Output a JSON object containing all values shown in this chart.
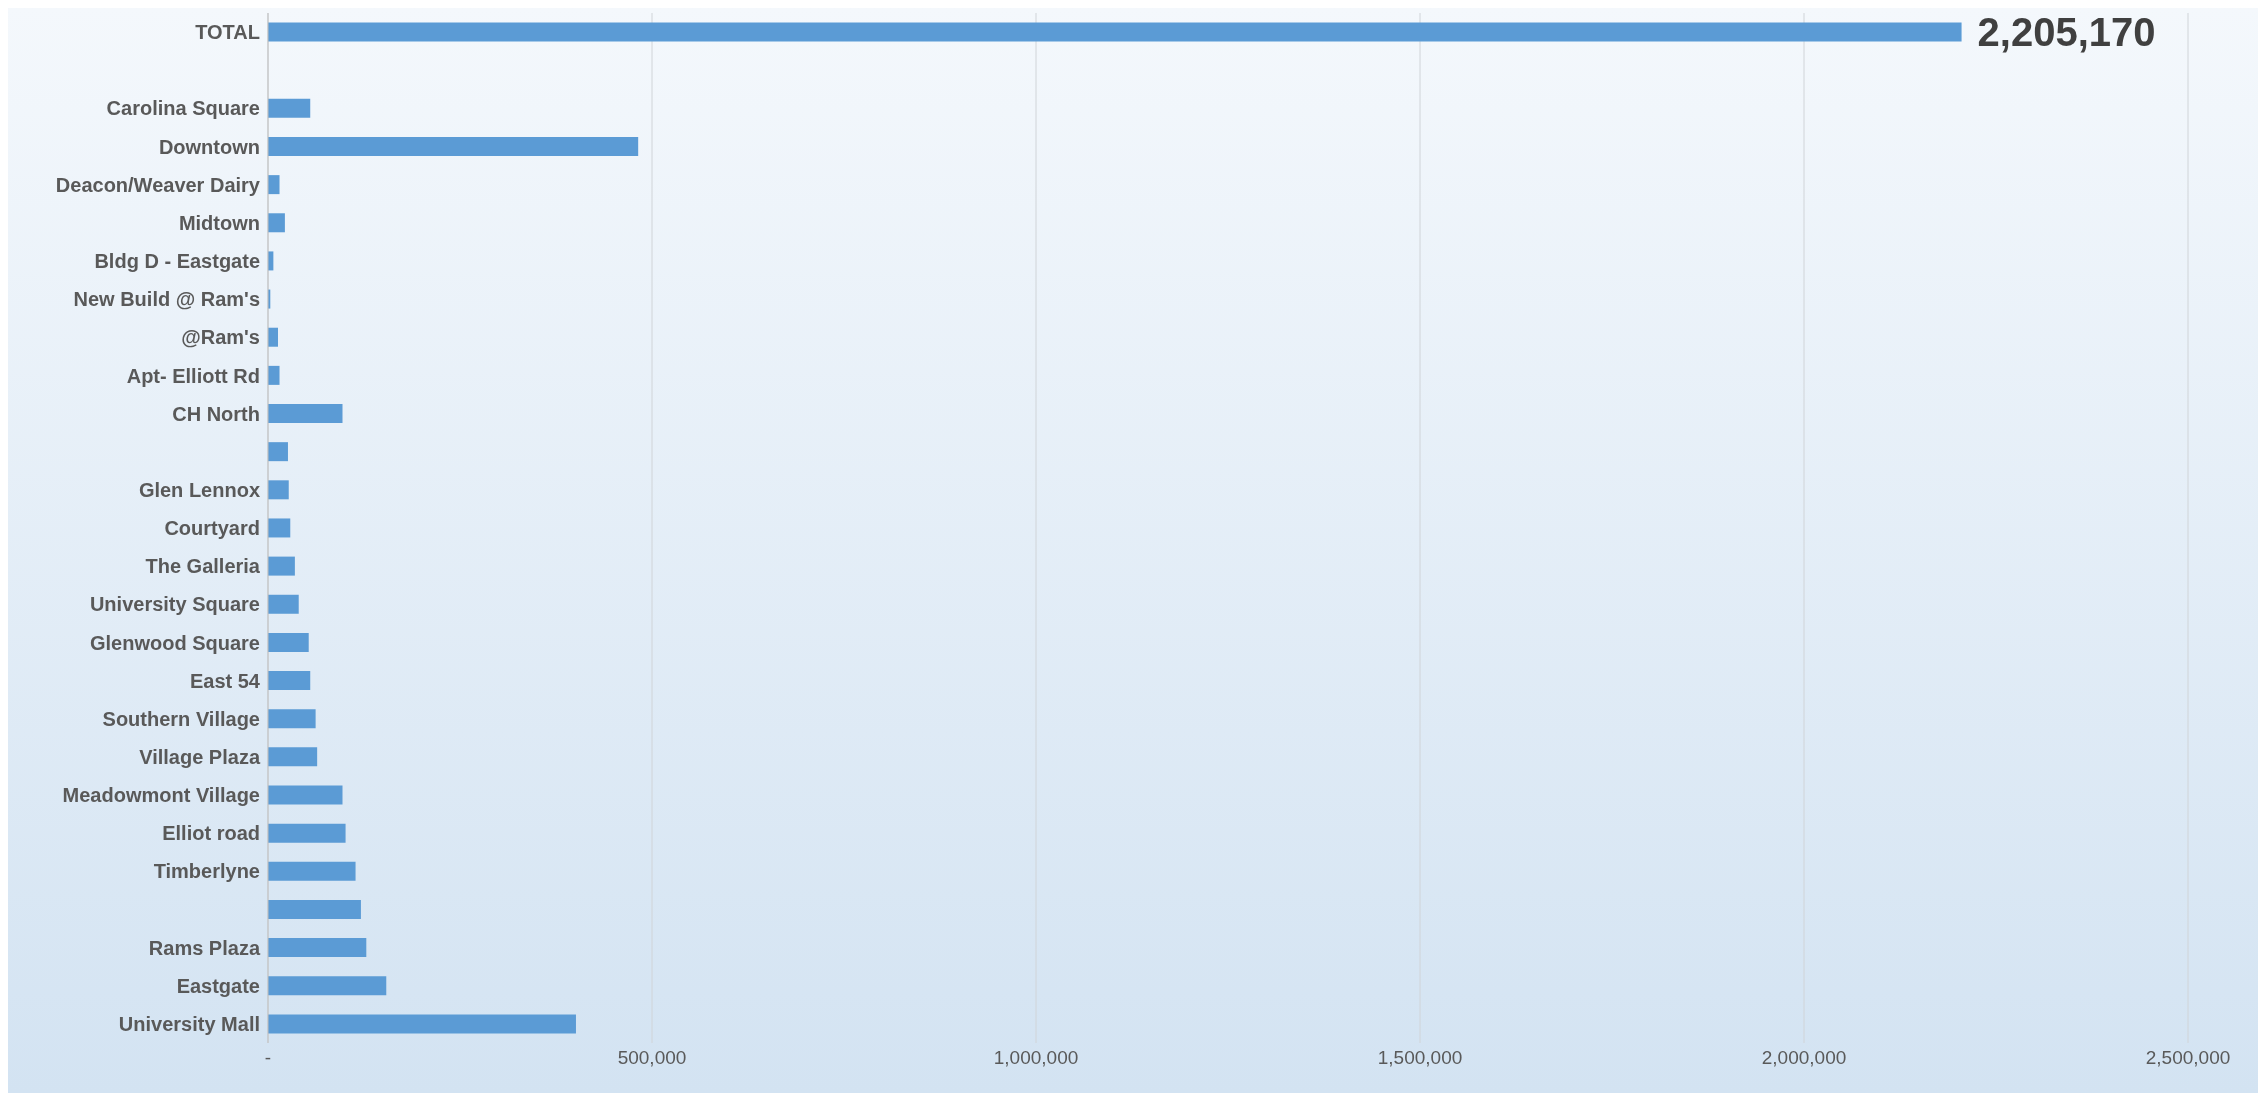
{
  "chart_data": {
    "type": "bar",
    "orientation": "horizontal",
    "categories": [
      "TOTAL",
      null,
      "Carolina Square",
      "Downtown",
      "Deacon/Weaver Dairy",
      "Midtown",
      "Bldg D - Eastgate",
      "New Build @ Ram's",
      "@Ram's",
      "Apt- Elliott Rd",
      "CH North",
      null,
      "Glen Lennox",
      "Courtyard",
      "The Galleria",
      "University Square",
      "Glenwood Square",
      "East 54",
      "Southern Village",
      "Village Plaza",
      "Meadowmont Village",
      "Elliot road",
      "Timberlyne",
      null,
      "Rams Plaza",
      "Eastgate",
      "University Mall"
    ],
    "values": [
      2205170,
      null,
      55000,
      482000,
      15000,
      22000,
      7000,
      3000,
      13000,
      15000,
      97000,
      26000,
      27000,
      29000,
      35000,
      40000,
      53000,
      55000,
      62000,
      64000,
      97000,
      101000,
      114000,
      121000,
      128000,
      154000,
      401000
    ],
    "value_labels": [
      "2,205,170",
      null,
      null,
      null,
      null,
      null,
      null,
      null,
      null,
      null,
      null,
      null,
      null,
      null,
      null,
      null,
      null,
      null,
      null,
      null,
      null,
      null,
      null,
      null,
      null,
      null,
      null
    ],
    "color": "#5b9bd5",
    "xlim": [
      0,
      2500000
    ],
    "xticks": [
      {
        "value": 0,
        "label": "-"
      },
      {
        "value": 500000,
        "label": "500,000"
      },
      {
        "value": 1000000,
        "label": "1,000,000"
      },
      {
        "value": 1500000,
        "label": "1,500,000"
      },
      {
        "value": 2000000,
        "label": "2,000,000"
      },
      {
        "value": 2500000,
        "label": "2,500,000"
      }
    ],
    "grid": "x",
    "legend": false
  }
}
